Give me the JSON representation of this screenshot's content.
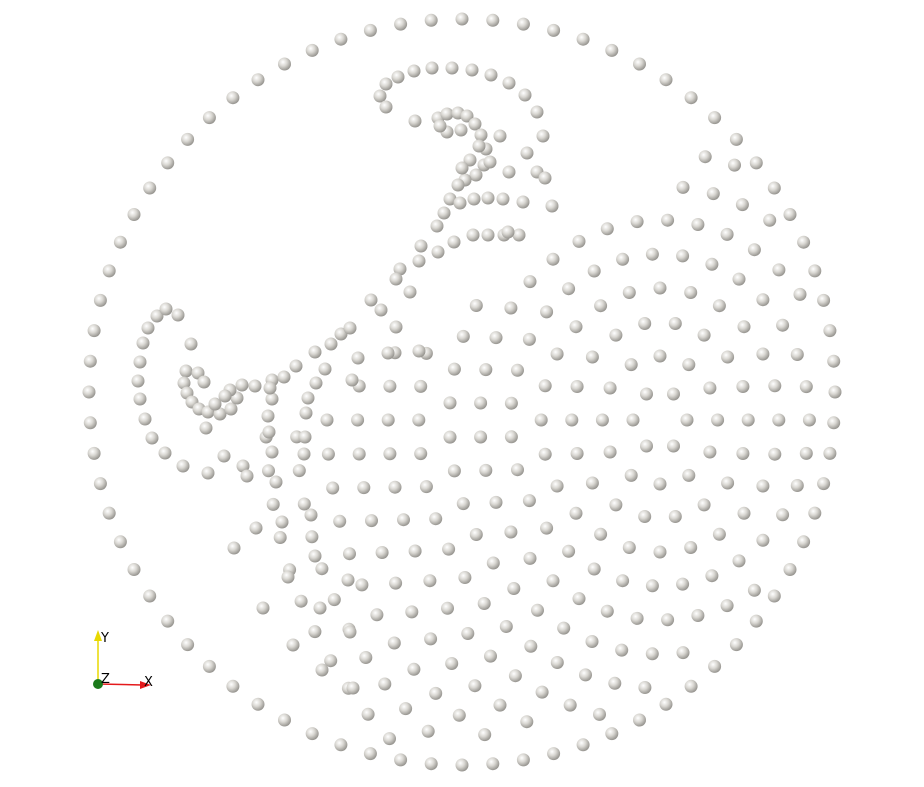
{
  "viewport": {
    "background": "#ffffff",
    "particle_color": "#d9d7d2",
    "particle_shadow": "#8f8d88",
    "particle_highlight": "#ffffff"
  },
  "orientation_axes": {
    "x_label": "X",
    "y_label": "Y",
    "z_label": "Z",
    "x_color": "#e41a1c",
    "y_color": "#e8d800",
    "z_color": "#1b7a1b"
  }
}
